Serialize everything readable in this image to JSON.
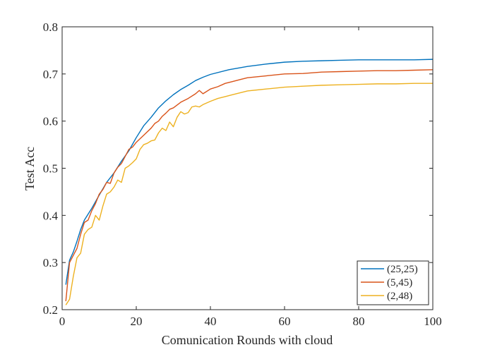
{
  "chart_data": {
    "type": "line",
    "title": "",
    "xlabel": "Comunication Rounds with cloud",
    "ylabel": "Test Acc",
    "xlim": [
      0,
      100
    ],
    "ylim": [
      0.2,
      0.8
    ],
    "xticks": [
      0,
      20,
      40,
      60,
      80,
      100
    ],
    "yticks": [
      0.2,
      0.3,
      0.4,
      0.5,
      0.6,
      0.7,
      0.8
    ],
    "xtick_labels": [
      "0",
      "20",
      "40",
      "60",
      "80",
      "100"
    ],
    "ytick_labels": [
      "0.2",
      "0.3",
      "0.4",
      "0.5",
      "0.6",
      "0.7",
      "0.8"
    ],
    "grid": false,
    "legend_position": "bottom-right",
    "series": [
      {
        "name": "(25,25)",
        "color": "#0072BD",
        "points": [
          [
            1,
            0.253
          ],
          [
            2,
            0.305
          ],
          [
            3,
            0.322
          ],
          [
            4,
            0.345
          ],
          [
            5,
            0.37
          ],
          [
            6,
            0.39
          ],
          [
            8,
            0.415
          ],
          [
            10,
            0.443
          ],
          [
            12,
            0.47
          ],
          [
            14,
            0.49
          ],
          [
            16,
            0.515
          ],
          [
            18,
            0.537
          ],
          [
            20,
            0.565
          ],
          [
            22,
            0.59
          ],
          [
            24,
            0.608
          ],
          [
            26,
            0.628
          ],
          [
            28,
            0.643
          ],
          [
            30,
            0.656
          ],
          [
            32,
            0.667
          ],
          [
            34,
            0.676
          ],
          [
            36,
            0.686
          ],
          [
            38,
            0.693
          ],
          [
            40,
            0.699
          ],
          [
            45,
            0.709
          ],
          [
            50,
            0.716
          ],
          [
            55,
            0.721
          ],
          [
            60,
            0.725
          ],
          [
            65,
            0.727
          ],
          [
            70,
            0.728
          ],
          [
            75,
            0.729
          ],
          [
            80,
            0.73
          ],
          [
            85,
            0.73
          ],
          [
            90,
            0.73
          ],
          [
            95,
            0.73
          ],
          [
            100,
            0.731
          ]
        ]
      },
      {
        "name": "(5,45)",
        "color": "#D95319",
        "points": [
          [
            1,
            0.218
          ],
          [
            2,
            0.3
          ],
          [
            3,
            0.315
          ],
          [
            4,
            0.33
          ],
          [
            5,
            0.36
          ],
          [
            6,
            0.385
          ],
          [
            7,
            0.39
          ],
          [
            8,
            0.41
          ],
          [
            9,
            0.425
          ],
          [
            10,
            0.445
          ],
          [
            11,
            0.455
          ],
          [
            12,
            0.47
          ],
          [
            13,
            0.468
          ],
          [
            14,
            0.49
          ],
          [
            15,
            0.502
          ],
          [
            16,
            0.51
          ],
          [
            17,
            0.525
          ],
          [
            18,
            0.54
          ],
          [
            19,
            0.545
          ],
          [
            20,
            0.555
          ],
          [
            22,
            0.57
          ],
          [
            24,
            0.585
          ],
          [
            25,
            0.595
          ],
          [
            26,
            0.6
          ],
          [
            27,
            0.61
          ],
          [
            28,
            0.617
          ],
          [
            29,
            0.625
          ],
          [
            30,
            0.628
          ],
          [
            32,
            0.64
          ],
          [
            34,
            0.648
          ],
          [
            36,
            0.658
          ],
          [
            37,
            0.665
          ],
          [
            38,
            0.658
          ],
          [
            40,
            0.668
          ],
          [
            42,
            0.673
          ],
          [
            44,
            0.68
          ],
          [
            46,
            0.684
          ],
          [
            48,
            0.688
          ],
          [
            50,
            0.692
          ],
          [
            55,
            0.696
          ],
          [
            60,
            0.7
          ],
          [
            65,
            0.701
          ],
          [
            70,
            0.704
          ],
          [
            75,
            0.705
          ],
          [
            80,
            0.706
          ],
          [
            85,
            0.707
          ],
          [
            90,
            0.707
          ],
          [
            95,
            0.708
          ],
          [
            100,
            0.709
          ]
        ]
      },
      {
        "name": "(2,48)",
        "color": "#EDB120",
        "points": [
          [
            1,
            0.21
          ],
          [
            2,
            0.222
          ],
          [
            3,
            0.27
          ],
          [
            4,
            0.31
          ],
          [
            5,
            0.32
          ],
          [
            6,
            0.36
          ],
          [
            7,
            0.37
          ],
          [
            8,
            0.375
          ],
          [
            9,
            0.4
          ],
          [
            10,
            0.39
          ],
          [
            11,
            0.42
          ],
          [
            12,
            0.445
          ],
          [
            13,
            0.45
          ],
          [
            14,
            0.46
          ],
          [
            15,
            0.475
          ],
          [
            16,
            0.47
          ],
          [
            17,
            0.5
          ],
          [
            18,
            0.505
          ],
          [
            19,
            0.512
          ],
          [
            20,
            0.52
          ],
          [
            21,
            0.54
          ],
          [
            22,
            0.55
          ],
          [
            23,
            0.553
          ],
          [
            24,
            0.558
          ],
          [
            25,
            0.56
          ],
          [
            26,
            0.575
          ],
          [
            27,
            0.585
          ],
          [
            28,
            0.58
          ],
          [
            29,
            0.598
          ],
          [
            30,
            0.588
          ],
          [
            31,
            0.608
          ],
          [
            32,
            0.62
          ],
          [
            33,
            0.615
          ],
          [
            34,
            0.618
          ],
          [
            35,
            0.63
          ],
          [
            36,
            0.632
          ],
          [
            37,
            0.63
          ],
          [
            38,
            0.635
          ],
          [
            40,
            0.642
          ],
          [
            42,
            0.648
          ],
          [
            44,
            0.652
          ],
          [
            46,
            0.656
          ],
          [
            48,
            0.66
          ],
          [
            50,
            0.664
          ],
          [
            55,
            0.668
          ],
          [
            60,
            0.672
          ],
          [
            65,
            0.674
          ],
          [
            70,
            0.676
          ],
          [
            75,
            0.677
          ],
          [
            80,
            0.678
          ],
          [
            85,
            0.679
          ],
          [
            90,
            0.679
          ],
          [
            95,
            0.68
          ],
          [
            100,
            0.68
          ]
        ]
      }
    ]
  }
}
